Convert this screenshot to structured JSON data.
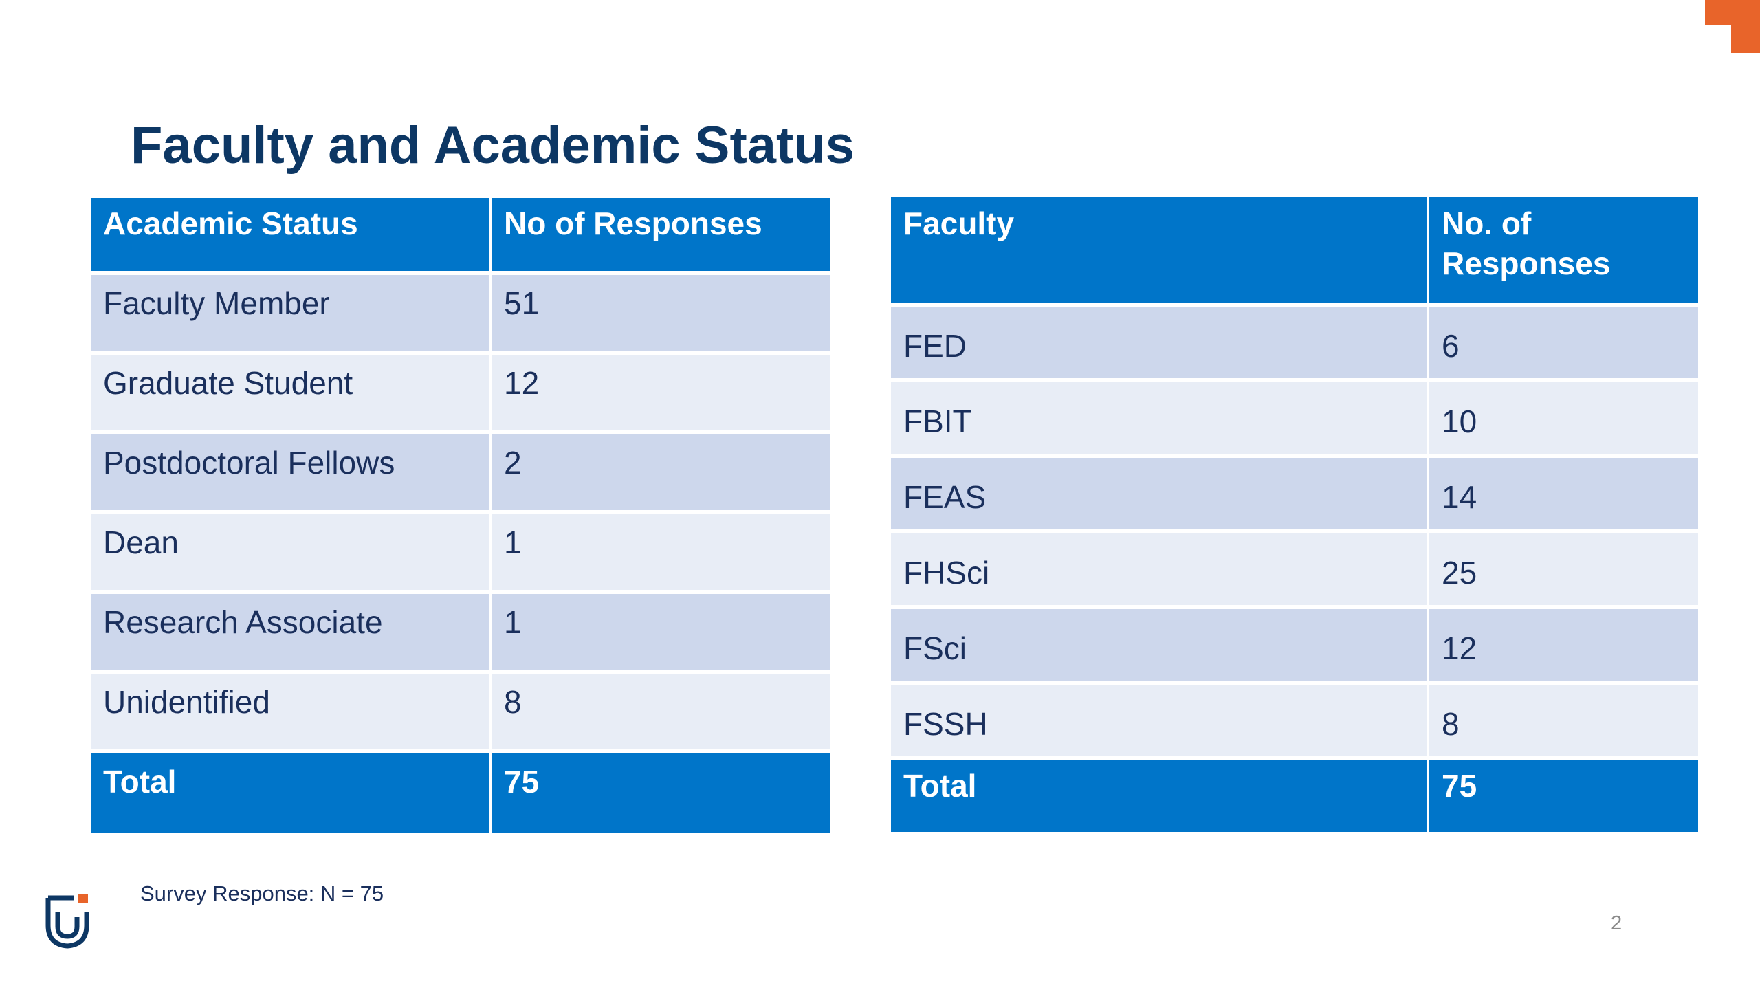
{
  "slide": {
    "title": "Faculty and Academic Status",
    "footnote": "Survey Response: N = 75",
    "page_number": "2",
    "accent_color": "#e8642a",
    "title_color": "#0d3764",
    "header_color": "#0075c9",
    "logo_icon": "university-logo-icon"
  },
  "academic_table": {
    "headers": [
      "Academic Status",
      "No of Responses"
    ],
    "rows": [
      [
        "Faculty Member",
        "51"
      ],
      [
        "Graduate Student",
        "12"
      ],
      [
        "Postdoctoral Fellows",
        "2"
      ],
      [
        "Dean",
        "1"
      ],
      [
        "Research Associate",
        "1"
      ],
      [
        "Unidentified",
        "8"
      ]
    ],
    "total": [
      "Total",
      "75"
    ]
  },
  "faculty_table": {
    "headers": [
      "Faculty",
      "No. of Responses"
    ],
    "rows": [
      [
        "FED",
        "6"
      ],
      [
        "FBIT",
        "10"
      ],
      [
        "FEAS",
        "14"
      ],
      [
        "FHSci",
        "25"
      ],
      [
        "FSci",
        "12"
      ],
      [
        "FSSH",
        "8"
      ]
    ],
    "total": [
      "Total",
      "75"
    ]
  }
}
